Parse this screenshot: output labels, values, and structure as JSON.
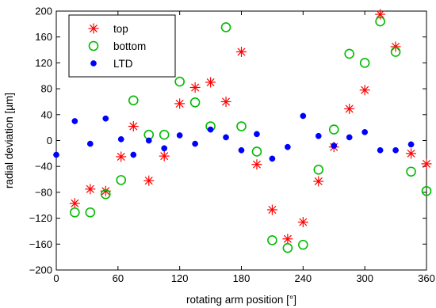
{
  "chart_data": {
    "type": "scatter",
    "title": "",
    "xlabel": "rotating arm position [°]",
    "ylabel": "radial deviation [µm]",
    "xlim": [
      0,
      360
    ],
    "ylim": [
      -200,
      200
    ],
    "xticks": [
      0,
      60,
      120,
      180,
      240,
      300,
      360
    ],
    "yticks": [
      -200,
      -160,
      -120,
      -80,
      -40,
      0,
      40,
      80,
      120,
      160,
      200
    ],
    "grid": false,
    "legend_position": "top-left",
    "series": [
      {
        "name": "top",
        "marker": "asterisk",
        "color": "#ff0000",
        "x": [
          18,
          33,
          48,
          63,
          75,
          90,
          105,
          120,
          135,
          150,
          165,
          180,
          195,
          210,
          225,
          240,
          255,
          270,
          285,
          300,
          315,
          330,
          345,
          360
        ],
        "y": [
          -97,
          -75,
          -78,
          -25,
          22,
          -62,
          -24,
          57,
          82,
          90,
          60,
          137,
          -37,
          -107,
          -152,
          -126,
          -63,
          -10,
          49,
          78,
          195,
          145,
          -20,
          -36
        ]
      },
      {
        "name": "bottom",
        "marker": "circle-open",
        "color": "#00bb00",
        "x": [
          18,
          33,
          48,
          63,
          75,
          90,
          105,
          120,
          135,
          150,
          165,
          180,
          195,
          210,
          225,
          240,
          255,
          270,
          285,
          300,
          315,
          330,
          345,
          360
        ],
        "y": [
          -111,
          -111,
          -83,
          -61,
          62,
          9,
          9,
          91,
          59,
          22,
          175,
          22,
          -17,
          -154,
          -166,
          -161,
          -45,
          17,
          134,
          120,
          184,
          137,
          -48,
          -78
        ]
      },
      {
        "name": "LTD",
        "marker": "circle-filled",
        "color": "#0000ff",
        "x": [
          0,
          18,
          33,
          48,
          63,
          75,
          90,
          105,
          120,
          135,
          150,
          165,
          180,
          195,
          210,
          225,
          240,
          255,
          270,
          285,
          300,
          315,
          330,
          345
        ],
        "y": [
          -22,
          30,
          -5,
          34,
          2,
          -22,
          0,
          -12,
          8,
          -5,
          17,
          5,
          -15,
          10,
          -28,
          -10,
          38,
          7,
          -8,
          5,
          13,
          -15,
          -15,
          -6
        ]
      }
    ]
  }
}
